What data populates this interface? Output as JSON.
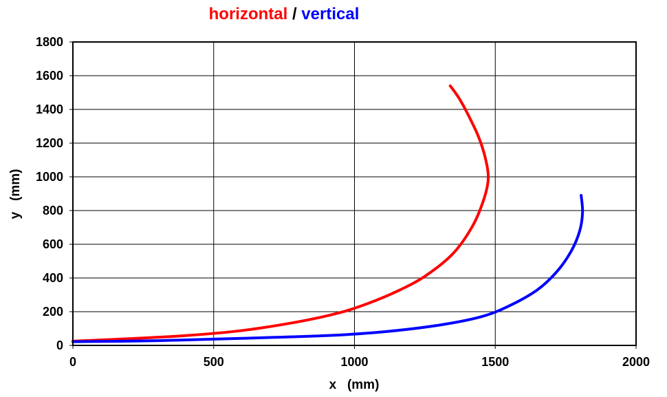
{
  "chart_data": {
    "type": "line",
    "title_parts": [
      {
        "text": "horizontal",
        "color": "#ff0000"
      },
      {
        "text": " / ",
        "color": "#000000"
      },
      {
        "text": "vertical",
        "color": "#0000ff"
      }
    ],
    "xlabel": "x   (mm)",
    "ylabel": "y   (mm)",
    "xlim": [
      0,
      2000
    ],
    "ylim": [
      0,
      1800
    ],
    "x_ticks": [
      0,
      500,
      1000,
      1500,
      2000
    ],
    "y_ticks": [
      0,
      200,
      400,
      600,
      800,
      1000,
      1200,
      1400,
      1600,
      1800
    ],
    "grid": true,
    "series": [
      {
        "color": "#ff0000",
        "points": [
          [
            0,
            25
          ],
          [
            200,
            40
          ],
          [
            400,
            58
          ],
          [
            600,
            88
          ],
          [
            800,
            140
          ],
          [
            950,
            195
          ],
          [
            1050,
            250
          ],
          [
            1150,
            320
          ],
          [
            1250,
            410
          ],
          [
            1350,
            545
          ],
          [
            1420,
            710
          ],
          [
            1460,
            870
          ],
          [
            1475,
            990
          ],
          [
            1465,
            1110
          ],
          [
            1440,
            1240
          ],
          [
            1400,
            1380
          ],
          [
            1370,
            1470
          ],
          [
            1340,
            1540
          ]
        ]
      },
      {
        "color": "#0000ff",
        "points": [
          [
            0,
            22
          ],
          [
            300,
            28
          ],
          [
            600,
            42
          ],
          [
            900,
            58
          ],
          [
            1100,
            80
          ],
          [
            1300,
            120
          ],
          [
            1450,
            170
          ],
          [
            1550,
            235
          ],
          [
            1650,
            330
          ],
          [
            1720,
            440
          ],
          [
            1770,
            560
          ],
          [
            1800,
            680
          ],
          [
            1810,
            790
          ],
          [
            1805,
            890
          ]
        ]
      }
    ]
  }
}
